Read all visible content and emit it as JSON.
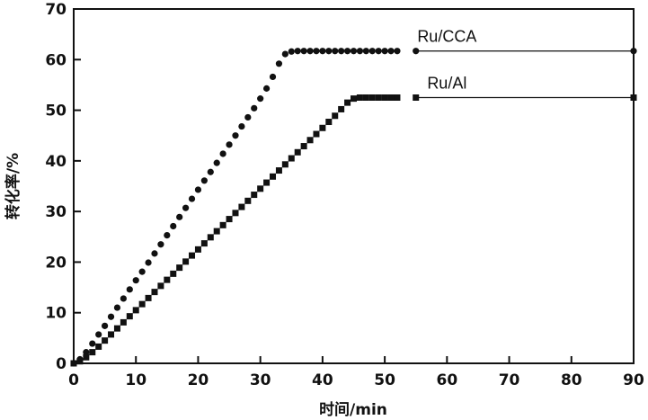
{
  "chart_data": {
    "type": "scatter",
    "title": "",
    "xlabel": "时间/min",
    "ylabel": "转化率/%",
    "xlim": [
      0,
      90
    ],
    "ylim": [
      0,
      70
    ],
    "xticks": [
      0,
      10,
      20,
      30,
      40,
      50,
      60,
      70,
      80,
      90
    ],
    "yticks": [
      0,
      10,
      20,
      30,
      40,
      50,
      60,
      70
    ],
    "grid": false,
    "series": [
      {
        "name": "Ru/CCA",
        "marker": "circle",
        "color": "#111111",
        "x": [
          0,
          1,
          2,
          3,
          4,
          5,
          6,
          7,
          8,
          9,
          10,
          11,
          12,
          13,
          14,
          15,
          16,
          17,
          18,
          19,
          20,
          21,
          22,
          23,
          24,
          25,
          26,
          27,
          28,
          29,
          30,
          31,
          32,
          33,
          34,
          35,
          36,
          37,
          38,
          39,
          40,
          41,
          42,
          43,
          44,
          45,
          46,
          47,
          48,
          49,
          50,
          51,
          52,
          55,
          90
        ],
        "y": [
          0,
          0.8,
          2.2,
          3.9,
          5.7,
          7.4,
          9.2,
          11,
          12.8,
          14.6,
          16.4,
          18.1,
          19.9,
          21.7,
          23.5,
          25.3,
          27.1,
          28.9,
          30.7,
          32.5,
          34.3,
          36.1,
          37.8,
          39.6,
          41.4,
          43.2,
          45,
          46.8,
          48.6,
          50.4,
          52.3,
          54.3,
          56.6,
          59.2,
          61.1,
          61.6,
          61.7,
          61.7,
          61.7,
          61.7,
          61.7,
          61.7,
          61.7,
          61.7,
          61.7,
          61.7,
          61.7,
          61.7,
          61.7,
          61.7,
          61.7,
          61.7,
          61.7,
          61.7,
          61.7
        ]
      },
      {
        "name": "Ru/Al",
        "marker": "square",
        "color": "#111111",
        "x": [
          0,
          1,
          2,
          3,
          4,
          5,
          6,
          7,
          8,
          9,
          10,
          11,
          12,
          13,
          14,
          15,
          16,
          17,
          18,
          19,
          20,
          21,
          22,
          23,
          24,
          25,
          26,
          27,
          28,
          29,
          30,
          31,
          32,
          33,
          34,
          35,
          36,
          37,
          38,
          39,
          40,
          41,
          42,
          43,
          44,
          45,
          46,
          47,
          48,
          49,
          50,
          51,
          52,
          55,
          90
        ],
        "y": [
          0,
          0.4,
          1.2,
          2.2,
          3.3,
          4.5,
          5.7,
          6.9,
          8.1,
          9.3,
          10.5,
          11.7,
          12.9,
          14.1,
          15.3,
          16.5,
          17.7,
          18.9,
          20.1,
          21.3,
          22.5,
          23.7,
          24.9,
          26.1,
          27.3,
          28.5,
          29.7,
          30.9,
          32.1,
          33.3,
          34.5,
          35.7,
          36.9,
          38.1,
          39.3,
          40.5,
          41.7,
          42.9,
          44.1,
          45.3,
          46.5,
          47.7,
          48.9,
          50.2,
          51.5,
          52.3,
          52.5,
          52.5,
          52.5,
          52.5,
          52.5,
          52.5,
          52.5,
          52.5,
          52.5
        ]
      }
    ]
  }
}
